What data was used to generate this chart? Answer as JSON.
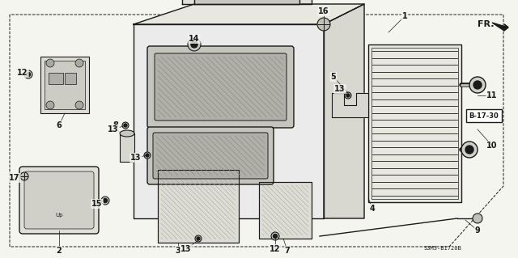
{
  "bg_color": "#f5f5f0",
  "line_color": "#1a1a1a",
  "figsize": [
    6.4,
    3.19
  ],
  "dpi": 100,
  "fr_label": "FR.",
  "code_label": "S3M3-B1720B",
  "part_box_label": "B-17-30"
}
